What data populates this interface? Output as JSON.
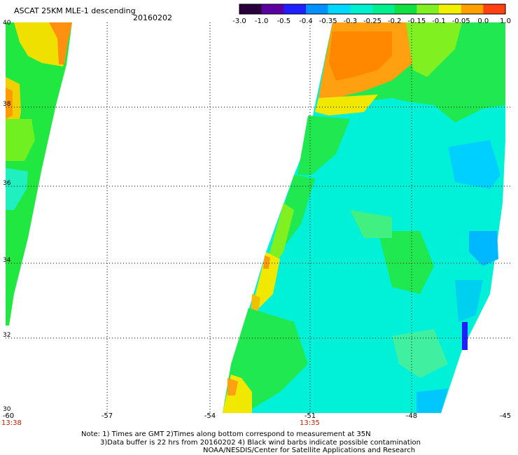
{
  "header": {
    "title": "ASCAT 25KM MLE-1 descending",
    "date": "20160202"
  },
  "colorbar": {
    "labels": [
      "-3.0",
      "-1.0",
      "-0.5",
      "-0.4",
      "-0.35",
      "-0.3",
      "-0.25",
      "-0.2",
      "-0.15",
      "-0.1",
      "-0.05",
      "0.0",
      "1.0"
    ],
    "colors": [
      "#2a003c",
      "#5a00a0",
      "#2020ff",
      "#0090ff",
      "#00d8ff",
      "#00f0d0",
      "#00f090",
      "#10e040",
      "#80f020",
      "#f0f000",
      "#ffa000",
      "#ff4010"
    ]
  },
  "axes": {
    "x_labels": [
      "-60",
      "-57",
      "-54",
      "-51",
      "-48",
      "-45"
    ],
    "y_labels": [
      "40",
      "38",
      "36",
      "34",
      "32",
      "30"
    ],
    "time_labels": [
      "13:38",
      "13:35"
    ]
  },
  "notes": [
    "Note: 1) Times are GMT 2)Times along bottom correspond to measurement at 35N",
    "3)Data buffer is 22 hrs from 20160202 4) Black wind barbs indicate possible contamination",
    "NOAA/NESDIS/Center for Satellite Applications and Research"
  ]
}
